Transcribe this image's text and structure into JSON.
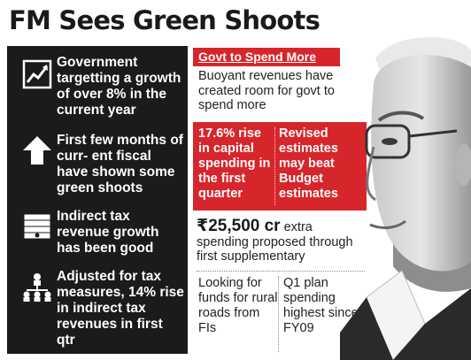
{
  "title": "FM Sees Green Shoots",
  "facts": [
    {
      "icon": "line-chart-icon",
      "lead": "Government",
      "rest": "targetting a growth of over 8% in the current year"
    },
    {
      "icon": "up-arrow-icon",
      "lead": "First few months of curr-",
      "rest": "ent fiscal have shown some green shoots"
    },
    {
      "icon": "money-stack-icon",
      "lead": "Indirect tax revenue growth",
      "rest": "has been good"
    },
    {
      "icon": "network-people-icon",
      "lead": "Adjusted for tax",
      "rest": "measures, 14% rise in indirect tax revenues in first qtr"
    }
  ],
  "spend": {
    "heading": "Govt to Spend More",
    "buoyant": "Buoyant revenues have created room for govt to spend more",
    "capital": "17.6% rise in capital spending in the first quarter",
    "revised": "Revised estimates may beat Budget estimates",
    "amount": "₹25,500 cr",
    "amount_text": "extra spending proposed through first supplementary",
    "rural": "Looking for funds for rural roads from FIs",
    "q1": "Q1 plan spending highest since FY09"
  },
  "colors": {
    "panel": "#1b1b1b",
    "accent_red": "#d7262b",
    "text_dark": "#1a1a1a"
  }
}
